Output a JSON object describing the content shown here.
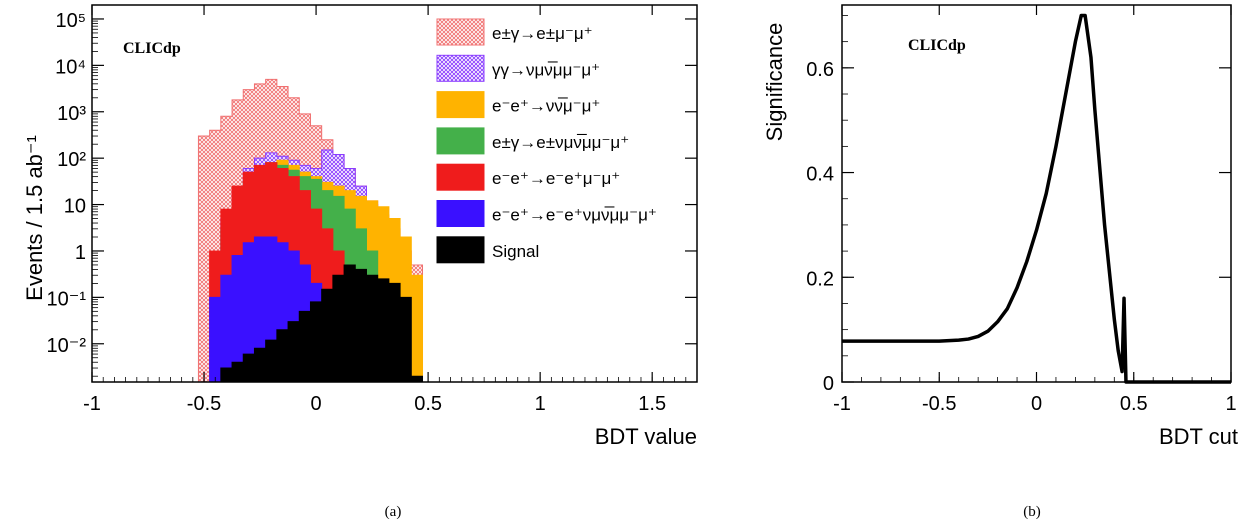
{
  "chart_data": [
    {
      "type": "area",
      "panel": "(a)",
      "brand": "CLICdp",
      "xlabel": "BDT value",
      "ylabel": "Events / 1.5 ab⁻¹",
      "yscale": "log",
      "xlim": [
        -1,
        1.7
      ],
      "ylim": [
        0.0015,
        200000
      ],
      "xticks": [
        -1,
        -0.5,
        0,
        0.5,
        1,
        1.5
      ],
      "xtick_labels": [
        "-1",
        "-0.5",
        "0",
        "0.5",
        "1",
        "1.5"
      ],
      "yticks": [
        0.01,
        0.1,
        1,
        10,
        100,
        1000,
        10000,
        100000
      ],
      "ytick_labels": [
        "10⁻²",
        "10⁻¹",
        "1",
        "10",
        "10²",
        "10³",
        "10⁴",
        "10⁵"
      ],
      "legend_position": "top-right",
      "stacked": true,
      "series": [
        {
          "name": "e±γ→e±μ⁻μ⁺",
          "color": "#f07070",
          "pattern": "hatch",
          "x": [
            -0.5,
            -0.45,
            -0.4,
            -0.35,
            -0.3,
            -0.25,
            -0.2,
            -0.15,
            -0.1,
            -0.05,
            0.0,
            0.05,
            0.1,
            0.15,
            0.2,
            0.25,
            0.3,
            0.35,
            0.4,
            0.45
          ],
          "y": [
            300,
            400,
            800,
            1800,
            3000,
            4000,
            5000,
            3500,
            2000,
            900,
            500,
            250,
            120,
            60,
            25,
            12,
            6,
            3,
            1,
            0.5
          ]
        },
        {
          "name": "γγ→νμν̅μμ⁻μ⁺",
          "color": "#8a3cff",
          "pattern": "hatch",
          "x": [
            -0.4,
            -0.35,
            -0.3,
            -0.25,
            -0.2,
            -0.15,
            -0.1,
            -0.05,
            0.0,
            0.05,
            0.1,
            0.15,
            0.2,
            0.25,
            0.3
          ],
          "y": [
            5,
            20,
            60,
            100,
            130,
            110,
            90,
            70,
            60,
            150,
            120,
            60,
            25,
            10,
            4
          ]
        },
        {
          "name": "e⁻e⁺→νν̅μ⁻μ⁺",
          "color": "#ffb300",
          "x": [
            -0.35,
            -0.3,
            -0.25,
            -0.2,
            -0.15,
            -0.1,
            -0.05,
            0.0,
            0.05,
            0.1,
            0.15,
            0.2,
            0.25,
            0.3,
            0.35,
            0.4,
            0.45
          ],
          "y": [
            5,
            15,
            40,
            70,
            90,
            70,
            50,
            40,
            30,
            25,
            20,
            15,
            12,
            9,
            5,
            2,
            0.3
          ]
        },
        {
          "name": "e±γ→e±νμν̅μμ⁻μ⁺",
          "color": "#44b04a",
          "x": [
            -0.4,
            -0.35,
            -0.3,
            -0.25,
            -0.2,
            -0.15,
            -0.1,
            -0.05,
            0.0,
            0.05,
            0.1,
            0.15,
            0.2,
            0.25,
            0.3
          ],
          "y": [
            3,
            10,
            30,
            60,
            80,
            70,
            55,
            40,
            35,
            20,
            15,
            8,
            3,
            1,
            0.2
          ]
        },
        {
          "name": "e⁻e⁺→e⁻e⁺μ⁻μ⁺",
          "color": "#ef1c1c",
          "x": [
            -0.45,
            -0.4,
            -0.35,
            -0.3,
            -0.25,
            -0.2,
            -0.15,
            -0.1,
            -0.05,
            0.0,
            0.05,
            0.1
          ],
          "y": [
            1,
            8,
            25,
            50,
            70,
            80,
            60,
            40,
            20,
            8,
            3,
            1
          ]
        },
        {
          "name": "e⁻e⁺→e⁻e⁺νμν̅μμ⁻μ⁺",
          "color": "#3a10ff",
          "x": [
            -0.45,
            -0.4,
            -0.35,
            -0.3,
            -0.25,
            -0.2,
            -0.15,
            -0.1,
            -0.05,
            0.0,
            0.05
          ],
          "y": [
            0.1,
            0.3,
            0.8,
            1.5,
            2,
            2,
            1.5,
            1,
            0.5,
            0.2,
            0.05
          ]
        },
        {
          "name": "Signal",
          "color": "#000000",
          "x": [
            -0.4,
            -0.35,
            -0.3,
            -0.25,
            -0.2,
            -0.15,
            -0.1,
            -0.05,
            0.0,
            0.05,
            0.1,
            0.15,
            0.2,
            0.25,
            0.3,
            0.35,
            0.4,
            0.45
          ],
          "y": [
            0.003,
            0.004,
            0.006,
            0.008,
            0.012,
            0.02,
            0.03,
            0.05,
            0.08,
            0.15,
            0.3,
            0.5,
            0.4,
            0.3,
            0.25,
            0.2,
            0.1,
            0.002
          ]
        }
      ]
    },
    {
      "type": "line",
      "panel": "(b)",
      "brand": "CLICdp",
      "xlabel": "BDT cut",
      "ylabel": "Significance",
      "xlim": [
        -1,
        1
      ],
      "ylim": [
        0,
        0.72
      ],
      "xticks": [
        -1,
        -0.5,
        0,
        0.5,
        1
      ],
      "xtick_labels": [
        "-1",
        "-0.5",
        "0",
        "0.5",
        "1"
      ],
      "yticks": [
        0,
        0.2,
        0.4,
        0.6
      ],
      "ytick_labels": [
        "0",
        "0.2",
        "0.4",
        "0.6"
      ],
      "series": [
        {
          "name": "",
          "color": "#000000",
          "x": [
            -1.0,
            -0.5,
            -0.4,
            -0.35,
            -0.3,
            -0.25,
            -0.2,
            -0.15,
            -0.1,
            -0.05,
            0.0,
            0.05,
            0.1,
            0.15,
            0.2,
            0.23,
            0.25,
            0.28,
            0.3,
            0.35,
            0.4,
            0.42,
            0.44,
            0.45,
            0.46,
            0.47,
            0.5,
            1.0
          ],
          "y": [
            0.078,
            0.078,
            0.08,
            0.082,
            0.087,
            0.097,
            0.115,
            0.14,
            0.18,
            0.23,
            0.29,
            0.36,
            0.45,
            0.55,
            0.65,
            0.7,
            0.7,
            0.62,
            0.52,
            0.3,
            0.12,
            0.06,
            0.02,
            0.16,
            0.0,
            0.0,
            0.0,
            0.0
          ]
        }
      ]
    }
  ]
}
